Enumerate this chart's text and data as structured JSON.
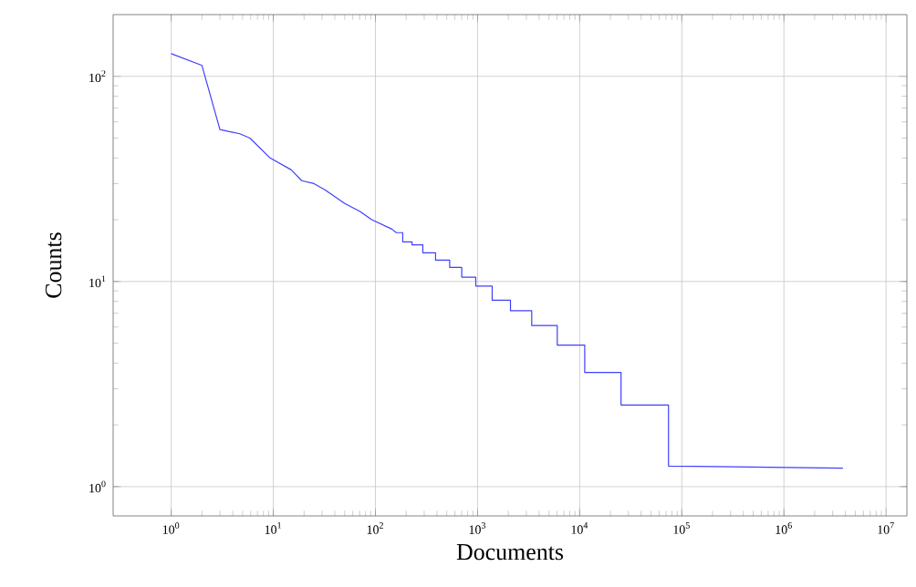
{
  "chart_data": {
    "type": "line",
    "xlabel": "Documents",
    "ylabel": "Counts",
    "log": "xy",
    "grid": true,
    "xlim": [
      0.27,
      16000000
    ],
    "ylim": [
      0.72,
      200
    ],
    "xticks": [
      {
        "value": 1,
        "label": "10$^{0}$"
      },
      {
        "value": 10,
        "label": "10$^{1}$"
      },
      {
        "value": 100,
        "label": "10$^{2}$"
      },
      {
        "value": 1000,
        "label": "10$^{3}$"
      },
      {
        "value": 10000,
        "label": "10$^{4}$"
      },
      {
        "value": 100000,
        "label": "10$^{5}$"
      },
      {
        "value": 1000000,
        "label": "10$^{6}$"
      },
      {
        "value": 10000000,
        "label": "10$^{7}$"
      }
    ],
    "yticks": [
      {
        "value": 1,
        "label": "10$^{0}$"
      },
      {
        "value": 10,
        "label": "10$^{1}$"
      },
      {
        "value": 100,
        "label": "10$^{2}$"
      }
    ],
    "series": [
      {
        "color": "#3f3fff",
        "x": [
          1,
          2,
          3,
          4.7,
          5.9,
          9.3,
          15,
          19,
          25,
          32,
          50,
          70,
          92,
          145,
          160,
          185,
          185,
          228,
          228,
          291,
          291,
          388,
          388,
          533,
          533,
          700,
          700,
          960,
          960,
          1390,
          1390,
          2100,
          2100,
          3390,
          3390,
          6030,
          6030,
          11200,
          11200,
          25400,
          25400,
          74100,
          74100,
          3780000
        ],
        "values": [
          129,
          113,
          55,
          52.5,
          50,
          40,
          35,
          31,
          30,
          28,
          24,
          22,
          20,
          18,
          17.3,
          17.3,
          15.6,
          15.6,
          15.1,
          15.1,
          13.8,
          13.8,
          12.7,
          12.7,
          11.7,
          11.7,
          10.5,
          10.5,
          9.5,
          9.5,
          8.1,
          8.1,
          7.2,
          7.2,
          6.1,
          6.1,
          4.9,
          4.9,
          3.6,
          3.6,
          2.5,
          2.5,
          1.26,
          1.23
        ]
      }
    ]
  }
}
